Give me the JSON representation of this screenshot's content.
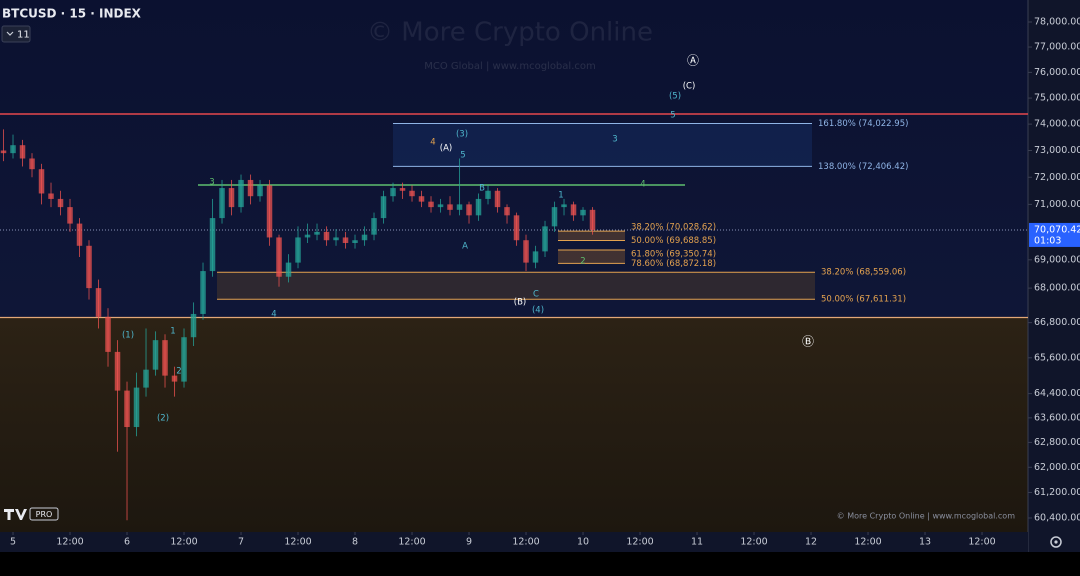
{
  "chart_data": {
    "type": "candlestick",
    "title": "BTCUSD · 15 · INDEX",
    "interval_badge": "11",
    "watermark": "© More Crypto Online",
    "watermark_sub": "MCO Global  |  www.mcoglobal.com",
    "footer_credit": "© More Crypto Online  |  www.mcoglobal.com",
    "logo_badge": "PRO",
    "log_scale": true,
    "up_color": "#26a69a",
    "down_color": "#ef5350",
    "x": [
      -2,
      0,
      2,
      4,
      6,
      8,
      10,
      12,
      14,
      16,
      18,
      20,
      22,
      24,
      26,
      28,
      30,
      32,
      34,
      36,
      38,
      40,
      42,
      44,
      46,
      48,
      50,
      52,
      54,
      56,
      58,
      60,
      62,
      64,
      66,
      68,
      70,
      72,
      74,
      76,
      78,
      80,
      82,
      84,
      86,
      88,
      90,
      92,
      94,
      96,
      98,
      100,
      102,
      104,
      106,
      108,
      110,
      112,
      114,
      116,
      118,
      120,
      122
    ],
    "open": [
      73000,
      72900,
      73200,
      72700,
      72300,
      71400,
      71200,
      70900,
      70300,
      69500,
      68000,
      67000,
      65800,
      64500,
      63300,
      64600,
      65200,
      66200,
      65000,
      64800,
      66300,
      67100,
      68600,
      70500,
      71600,
      70900,
      71900,
      71300,
      71700,
      69800,
      68400,
      68900,
      69800,
      69900,
      70000,
      69700,
      69800,
      69600,
      69700,
      69900,
      70500,
      71300,
      71600,
      71500,
      71300,
      71100,
      70900,
      71000,
      70800,
      71000,
      70600,
      71200,
      71500,
      70900,
      70600,
      69700,
      68900,
      69300,
      70200,
      70900,
      71000,
      70600,
      70800
    ],
    "high": [
      73800,
      73600,
      73400,
      72900,
      72500,
      71800,
      71500,
      71200,
      70500,
      69700,
      68300,
      67300,
      66200,
      64800,
      65100,
      66600,
      66500,
      66400,
      65300,
      66600,
      67500,
      68900,
      71200,
      71900,
      71900,
      72100,
      72100,
      71900,
      71900,
      69900,
      69200,
      70200,
      70300,
      70300,
      70200,
      70100,
      70000,
      69900,
      70200,
      70700,
      71500,
      71800,
      71800,
      71700,
      71500,
      71300,
      71200,
      71300,
      72700,
      71100,
      71400,
      71700,
      71600,
      71000,
      70700,
      69900,
      69500,
      70400,
      71100,
      71200,
      71100,
      70900,
      70900
    ],
    "low": [
      72600,
      72700,
      72400,
      72000,
      71000,
      70900,
      70600,
      70000,
      69100,
      67600,
      66600,
      65300,
      62500,
      60330,
      63000,
      64300,
      65000,
      64600,
      64300,
      64600,
      66000,
      66900,
      68400,
      70300,
      70600,
      70700,
      71000,
      71100,
      69500,
      68050,
      68200,
      68700,
      69600,
      69700,
      69500,
      69500,
      69400,
      69400,
      69500,
      69700,
      70300,
      71100,
      71200,
      71100,
      70900,
      70700,
      70700,
      70600,
      70600,
      70300,
      70400,
      71000,
      70700,
      70300,
      69500,
      68600,
      68700,
      69100,
      70000,
      70600,
      70400,
      70400,
      69900
    ],
    "close": [
      72900,
      73200,
      72700,
      72300,
      71400,
      71200,
      70900,
      70300,
      69500,
      68000,
      67000,
      65800,
      64500,
      63300,
      64600,
      65200,
      66200,
      65000,
      64800,
      66300,
      67100,
      68600,
      70500,
      71600,
      70900,
      71900,
      71300,
      71700,
      69800,
      68400,
      68900,
      69800,
      69900,
      70000,
      69700,
      69800,
      69600,
      69700,
      69900,
      70500,
      71300,
      71600,
      71500,
      71300,
      71100,
      70900,
      71000,
      70800,
      71000,
      70600,
      71200,
      71500,
      70900,
      70600,
      69700,
      68900,
      69300,
      70200,
      70900,
      71000,
      70600,
      70800,
      70070
    ],
    "last_price": {
      "value": 70070.42,
      "label": "70,070.42"
    },
    "countdown": "01:03",
    "xlim": [
      -2.74,
      213.68
    ],
    "xticks": [
      {
        "value": 0,
        "label": "5"
      },
      {
        "value": 12,
        "label": "12:00"
      },
      {
        "value": 24,
        "label": "6"
      },
      {
        "value": 36,
        "label": "12:00"
      },
      {
        "value": 48,
        "label": "7"
      },
      {
        "value": 60,
        "label": "12:00"
      },
      {
        "value": 72,
        "label": "8"
      },
      {
        "value": 84,
        "label": "12:00"
      },
      {
        "value": 96,
        "label": "9"
      },
      {
        "value": 108,
        "label": "12:00"
      },
      {
        "value": 120,
        "label": "10"
      },
      {
        "value": 132,
        "label": "12:00"
      },
      {
        "value": 144,
        "label": "11"
      },
      {
        "value": 156,
        "label": "12:00"
      },
      {
        "value": 168,
        "label": "12"
      },
      {
        "value": 180,
        "label": "12:00"
      },
      {
        "value": 192,
        "label": "13"
      },
      {
        "value": 204,
        "label": "12:00"
      }
    ],
    "ylim": [
      60027,
      78890
    ],
    "yticks": [
      {
        "value": 78000,
        "label": "78,000.00"
      },
      {
        "value": 77000,
        "label": "77,000.00"
      },
      {
        "value": 76000,
        "label": "76,000.00"
      },
      {
        "value": 75000,
        "label": "75,000.00"
      },
      {
        "value": 74000,
        "label": "74,000.00"
      },
      {
        "value": 73000,
        "label": "73,000.00"
      },
      {
        "value": 72000,
        "label": "72,000.00"
      },
      {
        "value": 71000,
        "label": "71,000.00"
      },
      {
        "value": 69000,
        "label": "69,000.00"
      },
      {
        "value": 68000,
        "label": "68,000.00"
      },
      {
        "value": 66800,
        "label": "66,800.00"
      },
      {
        "value": 65600,
        "label": "65,600.00"
      },
      {
        "value": 64400,
        "label": "64,400.00"
      },
      {
        "value": 63600,
        "label": "63,600.00"
      },
      {
        "value": 62800,
        "label": "62,800.00"
      },
      {
        "value": 62000,
        "label": "62,000.00"
      },
      {
        "value": 61200,
        "label": "61,200.00"
      },
      {
        "value": 60400,
        "label": "60,400.00"
      }
    ],
    "fib_levels": [
      {
        "label": "161.80% (74,022.95)",
        "value": 74022.95,
        "color": "#8fb4e6"
      },
      {
        "label": "138.00% (72,406.42)",
        "value": 72406.42,
        "color": "#8fb4e6"
      },
      {
        "label": "38.20% (70,028.62)",
        "value": 70028.62,
        "color": "#e3a24f"
      },
      {
        "label": "50.00% (69,688.85)",
        "value": 69688.85,
        "color": "#e3a24f"
      },
      {
        "label": "61.80% (69,350.74)",
        "value": 69350.74,
        "color": "#e3a24f"
      },
      {
        "label": "78.60% (68,872.18)",
        "value": 68872.18,
        "color": "#e3a24f"
      },
      {
        "label": "38.20% (68,559.06)",
        "value": 68559.06,
        "color": "#e3a24f"
      },
      {
        "label": "50.00% (67,611.31)",
        "value": 67611.31,
        "color": "#e3a24f"
      }
    ],
    "hlines": [
      {
        "value": 74387,
        "color": "#e5484d"
      },
      {
        "value": 66977,
        "color": "#e3a877"
      },
      {
        "value": 71713,
        "color": "#5fbf6e"
      }
    ],
    "annotations": [
      {
        "text": "Ⓐ",
        "color": "#ffffff"
      },
      {
        "text": "(C)",
        "color": "#ffffff"
      },
      {
        "text": "(5)",
        "color": "#4fb6cc"
      },
      {
        "text": "5",
        "color": "#4fb6cc"
      },
      {
        "text": "4",
        "color": "#e3a24f"
      },
      {
        "text": "(A)",
        "color": "#ffffff"
      },
      {
        "text": "(3)",
        "color": "#4fb6cc"
      },
      {
        "text": "5",
        "color": "#4fb6cc"
      },
      {
        "text": "3",
        "color": "#4fb6cc"
      },
      {
        "text": "4",
        "color": "#5fbf6e"
      },
      {
        "text": "3",
        "color": "#5fbf6e"
      },
      {
        "text": "B",
        "color": "#4fb6cc"
      },
      {
        "text": "1",
        "color": "#4fb6cc"
      },
      {
        "text": "A",
        "color": "#4fb6cc"
      },
      {
        "text": "2",
        "color": "#5fbf6e"
      },
      {
        "text": "(B)",
        "color": "#ffffff"
      },
      {
        "text": "C",
        "color": "#4fb6cc"
      },
      {
        "text": "(4)",
        "color": "#4fb6cc"
      },
      {
        "text": "4",
        "color": "#4fb6cc"
      },
      {
        "text": "(1)",
        "color": "#4fb6cc"
      },
      {
        "text": "1",
        "color": "#4fb6cc"
      },
      {
        "text": "2",
        "color": "#4fb6cc"
      },
      {
        "text": "(2)",
        "color": "#4fb6cc"
      },
      {
        "text": "Ⓑ",
        "color": "#ffffff"
      }
    ]
  }
}
